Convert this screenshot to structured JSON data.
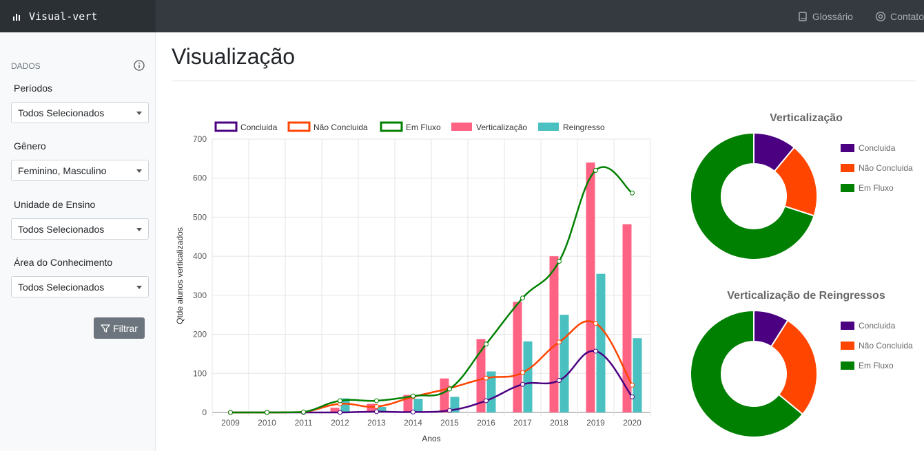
{
  "navbar": {
    "brand": "Visual-vert",
    "links": [
      {
        "label": "Glossário",
        "icon": "book-icon"
      },
      {
        "label": "Contato",
        "icon": "at-icon"
      }
    ]
  },
  "sidebar": {
    "heading": "DADOS",
    "fields": [
      {
        "label": "Períodos",
        "value": "Todos Selecionados"
      },
      {
        "label": "Gênero",
        "value": "Feminino, Masculino"
      },
      {
        "label": "Unidade de Ensino",
        "value": "Todos Selecionados"
      },
      {
        "label": "Área do Conhecimento",
        "value": "Todos Selecionados"
      }
    ],
    "filter_button": "Filtrar"
  },
  "main": {
    "title": "Visualização"
  },
  "colors": {
    "concluida": "#4b0082",
    "nao_concluida": "#ff4500",
    "em_fluxo": "#008000",
    "verticalizacao": "#ff6384",
    "reingresso": "#4bc0c0"
  },
  "chart_data": [
    {
      "type": "bar",
      "title": "",
      "xlabel": "Anos",
      "ylabel": "Qtde alunos verticalizados",
      "ylim": [
        0,
        700
      ],
      "yticks": [
        0,
        100,
        200,
        300,
        400,
        500,
        600,
        700
      ],
      "legend": "top",
      "categories": [
        "2009",
        "2010",
        "2011",
        "2012",
        "2013",
        "2014",
        "2015",
        "2016",
        "2017",
        "2018",
        "2019",
        "2020"
      ],
      "series": [
        {
          "name": "Concluida",
          "kind": "line",
          "values": [
            0,
            0,
            0,
            0,
            2,
            1,
            5,
            30,
            72,
            82,
            157,
            40
          ]
        },
        {
          "name": "Não Concluida",
          "kind": "line",
          "values": [
            0,
            0,
            1,
            22,
            15,
            40,
            62,
            88,
            102,
            180,
            228,
            70
          ]
        },
        {
          "name": "Em Fluxo",
          "kind": "line",
          "values": [
            0,
            0,
            1,
            30,
            30,
            42,
            60,
            175,
            293,
            387,
            620,
            562
          ]
        },
        {
          "name": "Verticalização",
          "kind": "bar",
          "values": [
            0,
            0,
            0,
            12,
            22,
            45,
            87,
            188,
            283,
            400,
            640,
            482
          ]
        },
        {
          "name": "Reingresso",
          "kind": "bar",
          "values": [
            0,
            0,
            0,
            36,
            14,
            35,
            40,
            105,
            182,
            250,
            355,
            190
          ]
        }
      ]
    },
    {
      "type": "pie",
      "title": "Verticalização",
      "legend": "right",
      "labels": [
        "Concluida",
        "Não Concluida",
        "Em Fluxo"
      ],
      "values": [
        11,
        19,
        70
      ]
    },
    {
      "type": "pie",
      "title": "Verticalização de Reingressos",
      "legend": "right",
      "labels": [
        "Concluida",
        "Não Concluida",
        "Em Fluxo"
      ],
      "values": [
        9,
        27,
        64
      ]
    }
  ]
}
